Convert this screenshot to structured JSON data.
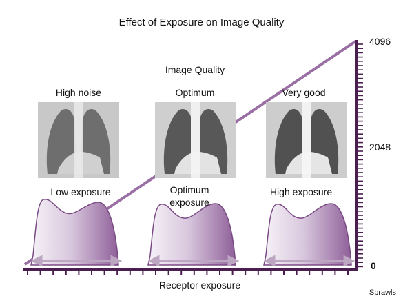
{
  "title": "Effect of Exposure on Image Quality",
  "image_quality_heading": "Image Quality",
  "panels": [
    {
      "quality": "High noise",
      "exposure": "Low exposure"
    },
    {
      "quality": "Optimum",
      "exposure": "Optimum\nexposure"
    },
    {
      "quality": "Very good",
      "exposure": "High exposure"
    }
  ],
  "y_axis_ticks": [
    "4096",
    "2048",
    "0"
  ],
  "x_axis_label": "Receptor exposure",
  "credit": "Sprawls",
  "colors": {
    "axis": "#4a1f4f",
    "line": "#9a6fa3",
    "curve_dark": "#8e5f98",
    "curve_light": "#f3eef5"
  },
  "icons": [
    "chest-xray-image",
    "histogram-curve",
    "double-arrow"
  ]
}
